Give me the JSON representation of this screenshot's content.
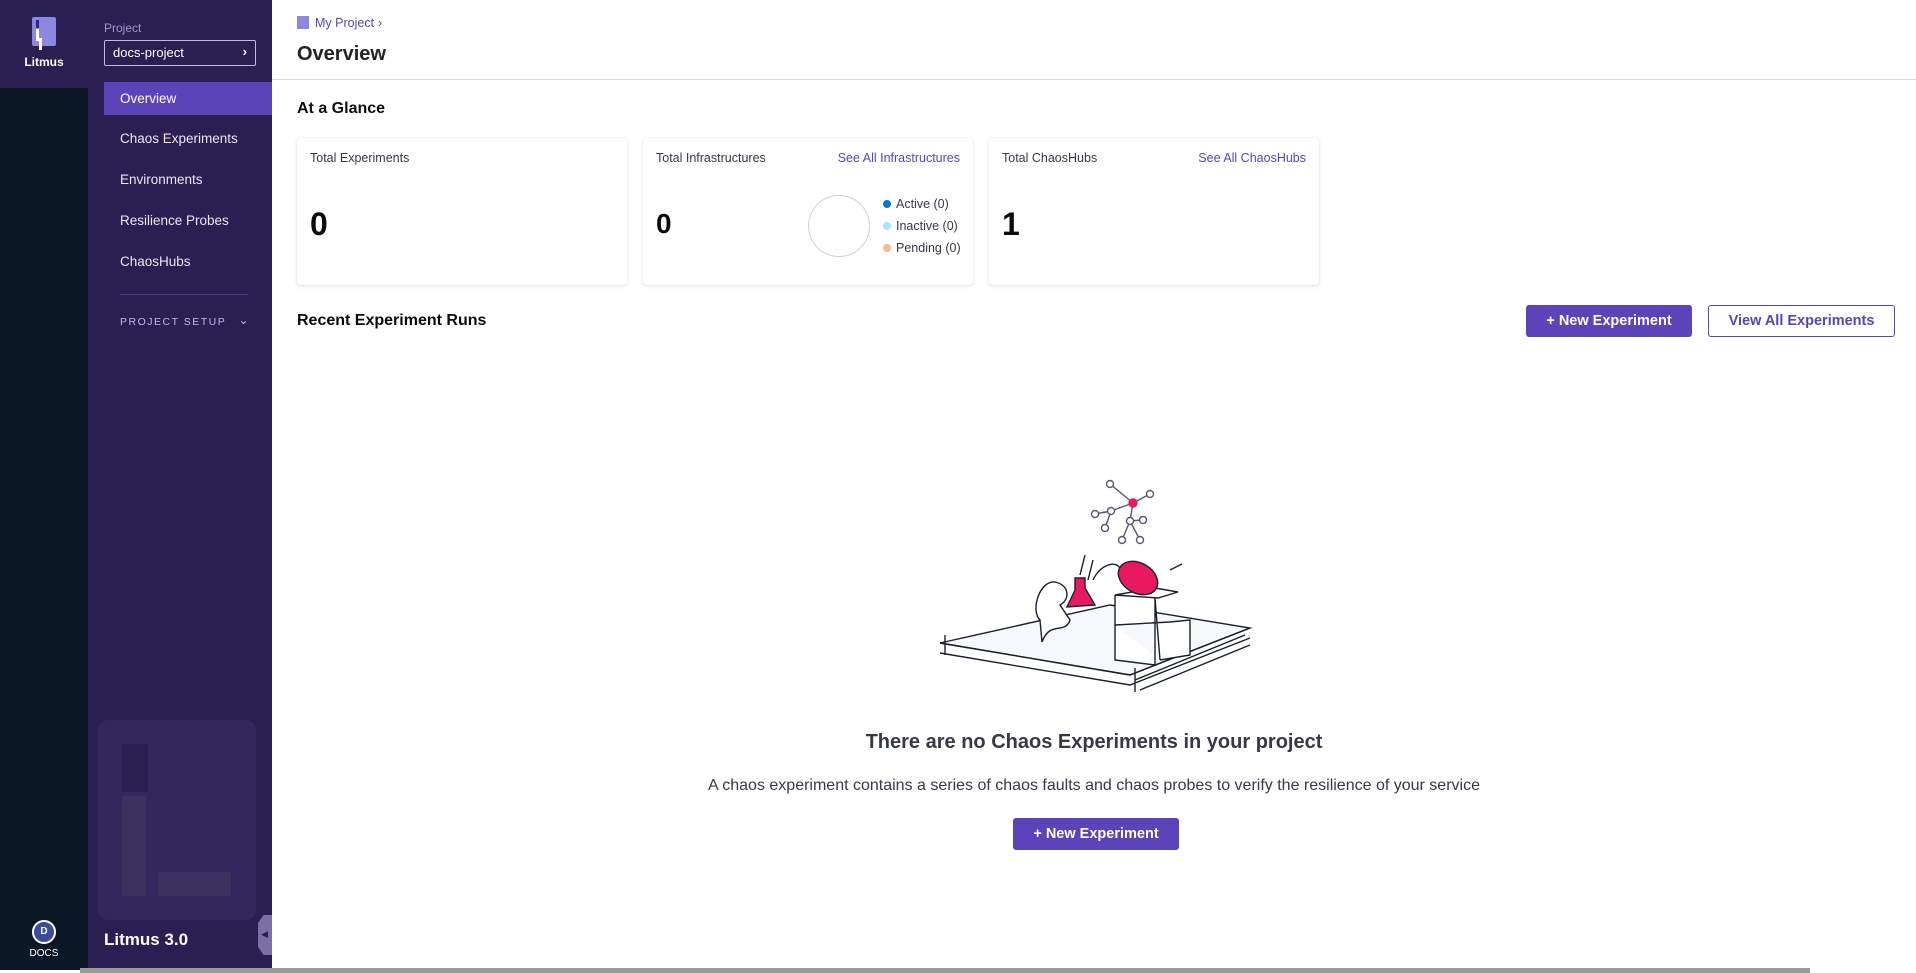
{
  "rail": {
    "app_label": "Litmus",
    "account_initial": "D",
    "account_label": "DOCS"
  },
  "sidebar": {
    "project_label": "Project",
    "project_name": "docs-project",
    "items": [
      {
        "label": "Overview",
        "active": true
      },
      {
        "label": "Chaos Experiments"
      },
      {
        "label": "Environments"
      },
      {
        "label": "Resilience Probes"
      },
      {
        "label": "ChaosHubs"
      }
    ],
    "section": "PROJECT SETUP",
    "version": "Litmus 3.0"
  },
  "header": {
    "breadcrumb": "My Project",
    "title": "Overview"
  },
  "glance": {
    "title": "At a Glance",
    "cards": [
      {
        "title": "Total Experiments",
        "value": "0"
      },
      {
        "title": "Total Infrastructures",
        "link": "See All Infrastructures",
        "value": "0",
        "legend": [
          {
            "label": "Active (0)",
            "color": "#0278d5"
          },
          {
            "label": "Inactive (0)",
            "color": "#a3e9ff"
          },
          {
            "label": "Pending (0)",
            "color": "#ffbb8c"
          }
        ]
      },
      {
        "title": "Total ChaosHubs",
        "link": "See All ChaosHubs",
        "value": "1"
      }
    ]
  },
  "recent": {
    "title": "Recent Experiment Runs",
    "new_button": "+ New Experiment",
    "view_all_button": "View All Experiments",
    "empty_title": "There are no Chaos Experiments in your project",
    "empty_desc": "A chaos experiment contains a series of chaos faults and chaos probes to verify the resilience of your service",
    "empty_button": "+ New Experiment"
  },
  "colors": {
    "accent": "#5b44ba",
    "sidebar": "#2a1e52",
    "rail": "#0b1827",
    "illustration_accent": "#e8195f"
  }
}
